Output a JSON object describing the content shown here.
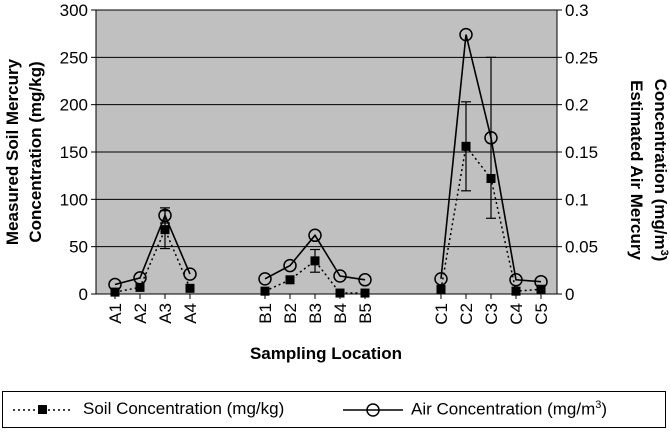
{
  "chart_data": {
    "type": "line",
    "xlabel": "Sampling Location",
    "ylabel_left": "Measured Soil Mercury Concentration (mg/kg)",
    "ylabel_right": "Estimated Air Mercury Concentration (mg/m3)",
    "ylim_left": [
      0,
      300
    ],
    "ylim_right": [
      0,
      0.3
    ],
    "yticks_left": [
      "0",
      "50",
      "100",
      "150",
      "200",
      "250",
      "300"
    ],
    "yticks_right": [
      "0",
      "0.05",
      "0.1",
      "0.15",
      "0.2",
      "0.25",
      "0.3"
    ],
    "grid": "horizontal",
    "background_color": "#c0c0c0",
    "groups": [
      [
        "A1",
        "A2",
        "A3",
        "A4"
      ],
      [
        "B1",
        "B2",
        "B3",
        "B4",
        "B5"
      ],
      [
        "C1",
        "C2",
        "C3",
        "C4",
        "C5"
      ]
    ],
    "legend_position": "bottom",
    "series": [
      {
        "name": "Soil Concentration (mg/kg)",
        "axis": "left",
        "style": "dotted",
        "marker": "filled-square",
        "values": [
          [
            2,
            7,
            68,
            6
          ],
          [
            3,
            15,
            35,
            1,
            1
          ],
          [
            5,
            156,
            122,
            3,
            5
          ]
        ],
        "error": [
          [
            0,
            0,
            20,
            0
          ],
          [
            0,
            0,
            12,
            0,
            0
          ],
          [
            0,
            47,
            0,
            0,
            0
          ]
        ]
      },
      {
        "name": "Air Concentration (mg/m3)",
        "axis": "right",
        "style": "solid",
        "marker": "open-circle",
        "values": [
          [
            0.01,
            0.017,
            0.083,
            0.021
          ],
          [
            0.016,
            0.03,
            0.062,
            0.019,
            0.015
          ],
          [
            0.016,
            0.274,
            0.165,
            0.015,
            0.013
          ]
        ],
        "error": [
          [
            0,
            0,
            0.008,
            0
          ],
          [
            0,
            0,
            0,
            0,
            0
          ],
          [
            0,
            0,
            0.085,
            0,
            0
          ]
        ]
      }
    ]
  },
  "legend": {
    "soil_label": "Soil Concentration (mg/kg)",
    "air_label_prefix": "Air Concentration (mg/m",
    "air_label_sup": "3",
    "air_label_suffix": ")"
  }
}
